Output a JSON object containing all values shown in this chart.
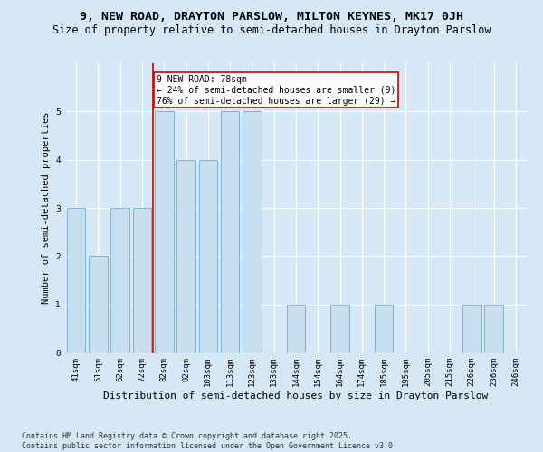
{
  "title": "9, NEW ROAD, DRAYTON PARSLOW, MILTON KEYNES, MK17 0JH",
  "subtitle": "Size of property relative to semi-detached houses in Drayton Parslow",
  "xlabel": "Distribution of semi-detached houses by size in Drayton Parslow",
  "ylabel": "Number of semi-detached properties",
  "categories": [
    "41sqm",
    "51sqm",
    "62sqm",
    "72sqm",
    "82sqm",
    "92sqm",
    "103sqm",
    "113sqm",
    "123sqm",
    "133sqm",
    "144sqm",
    "154sqm",
    "164sqm",
    "174sqm",
    "185sqm",
    "195sqm",
    "205sqm",
    "215sqm",
    "226sqm",
    "236sqm",
    "246sqm"
  ],
  "values": [
    3,
    2,
    3,
    3,
    5,
    4,
    4,
    5,
    5,
    0,
    1,
    0,
    1,
    0,
    1,
    0,
    0,
    0,
    1,
    1,
    0
  ],
  "bar_color": "#c8dff0",
  "bar_edge_color": "#7fb3d3",
  "highlight_label": "9 NEW ROAD: 78sqm",
  "pct_smaller": "24% of semi-detached houses are smaller (9)",
  "pct_larger": "76% of semi-detached houses are larger (29)",
  "annotation_box_color": "#ffffff",
  "annotation_box_edge": "#cc0000",
  "ylim": [
    0,
    6
  ],
  "yticks": [
    0,
    1,
    2,
    3,
    4,
    5
  ],
  "background_color": "#d6e8f5",
  "plot_bg_color": "#d6e8f5",
  "grid_color": "#ffffff",
  "footer": "Contains HM Land Registry data © Crown copyright and database right 2025.\nContains public sector information licensed under the Open Government Licence v3.0.",
  "title_fontsize": 9.5,
  "subtitle_fontsize": 8.5,
  "xlabel_fontsize": 8,
  "ylabel_fontsize": 7.5,
  "footer_fontsize": 6,
  "tick_fontsize": 6.5,
  "annot_fontsize": 7
}
